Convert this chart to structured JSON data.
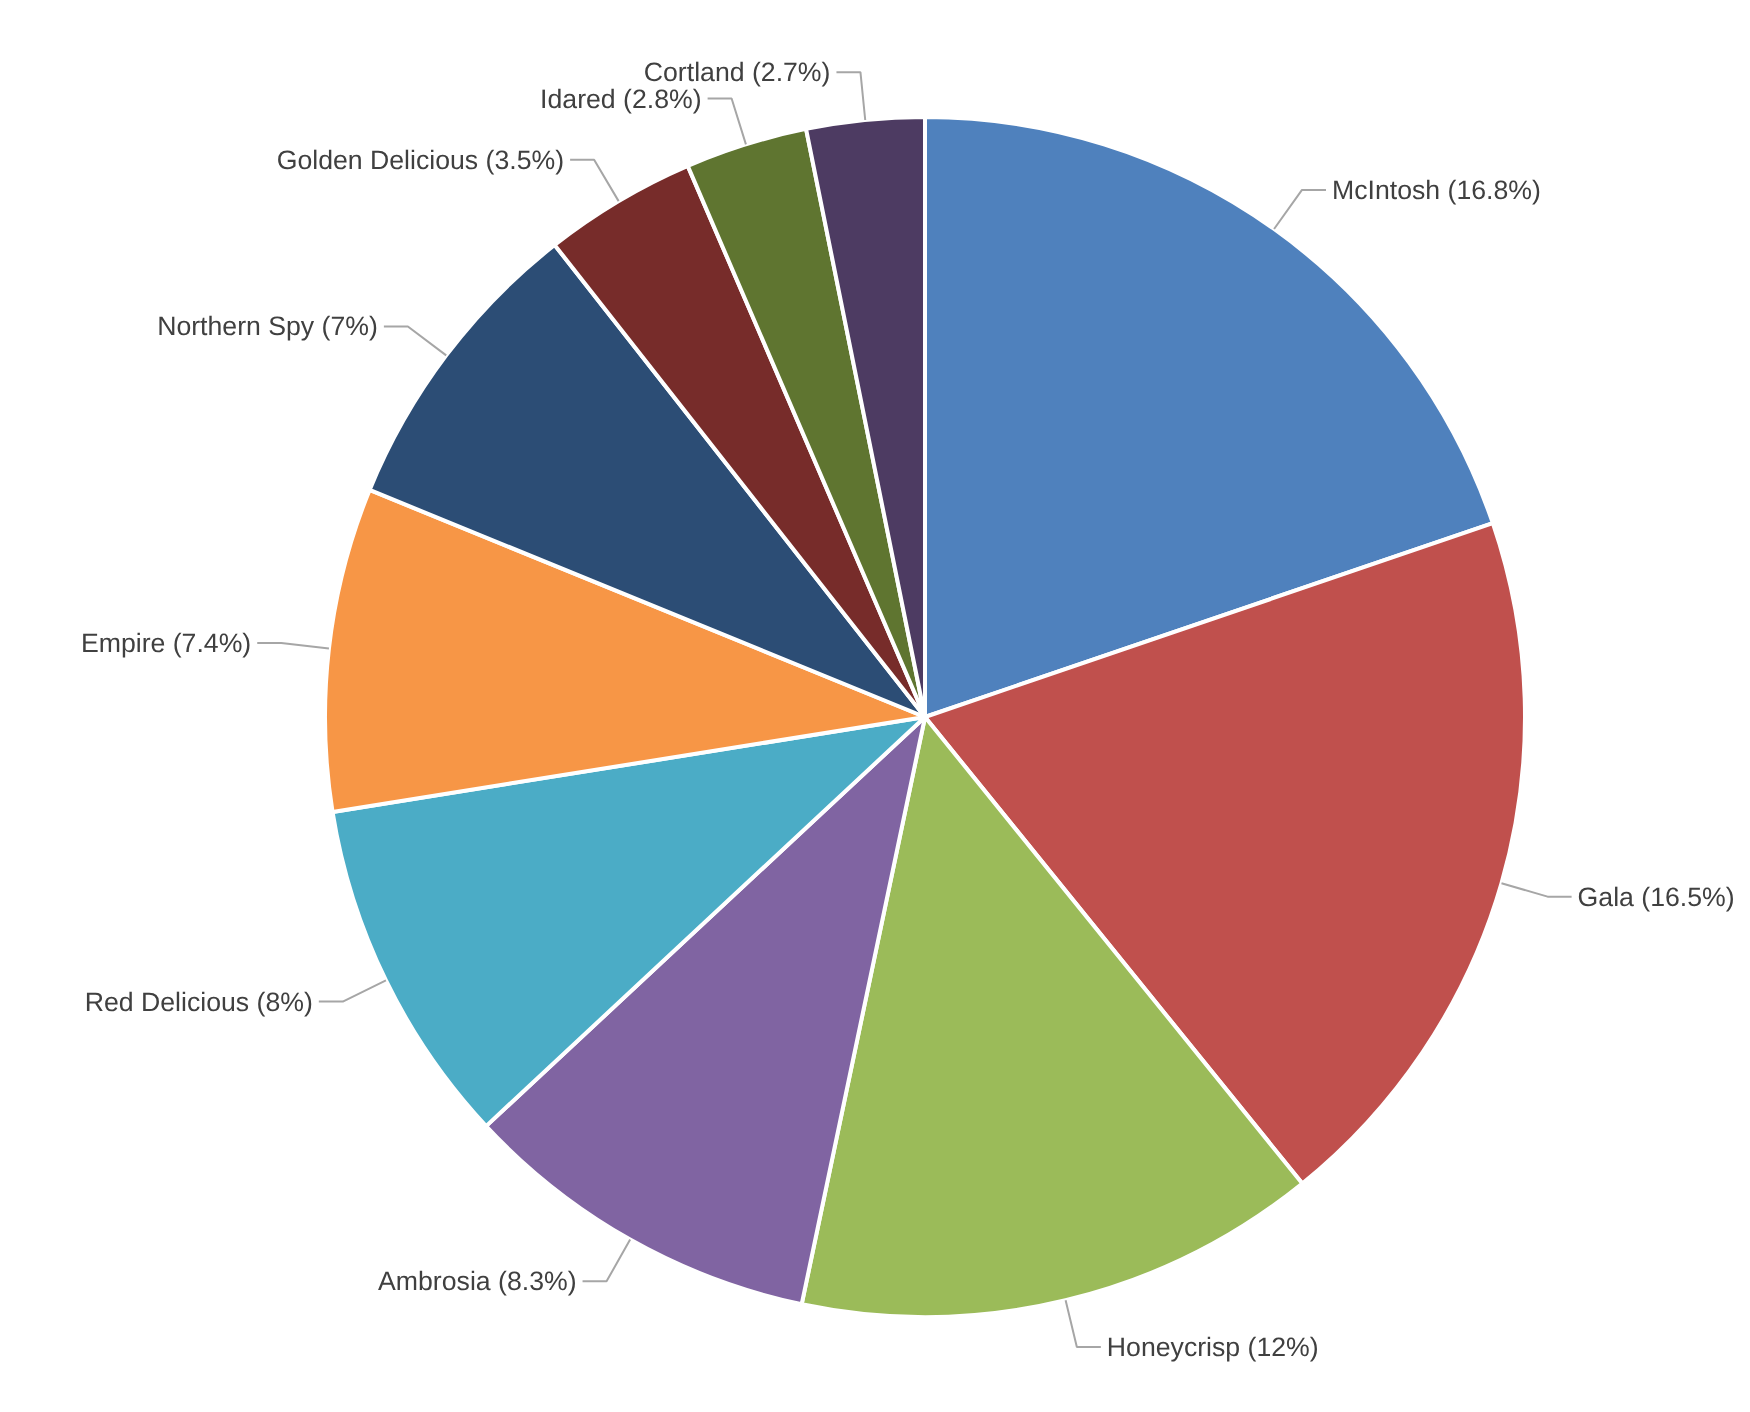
{
  "chart_data": {
    "type": "pie",
    "categories": [
      "McIntosh (16.8%)",
      "Gala (16.5%)",
      "Honeycrisp (12%)",
      "Ambrosia (8.3%)",
      "Red Delicious (8%)",
      "Empire (7.4%)",
      "Northern Spy (7%)",
      "Golden Delicious (3.5%)",
      "Idared (2.8%)",
      "Cortland (2.7%)"
    ],
    "values": [
      16.8,
      16.5,
      12,
      8.3,
      8,
      7.4,
      7,
      3.5,
      2.8,
      2.7
    ],
    "colors": [
      "#4f81bd",
      "#c0504d",
      "#9bbb59",
      "#8064a2",
      "#4bacc6",
      "#f79646",
      "#2c4d75",
      "#772c2a",
      "#5f7530",
      "#4d3b62"
    ]
  }
}
